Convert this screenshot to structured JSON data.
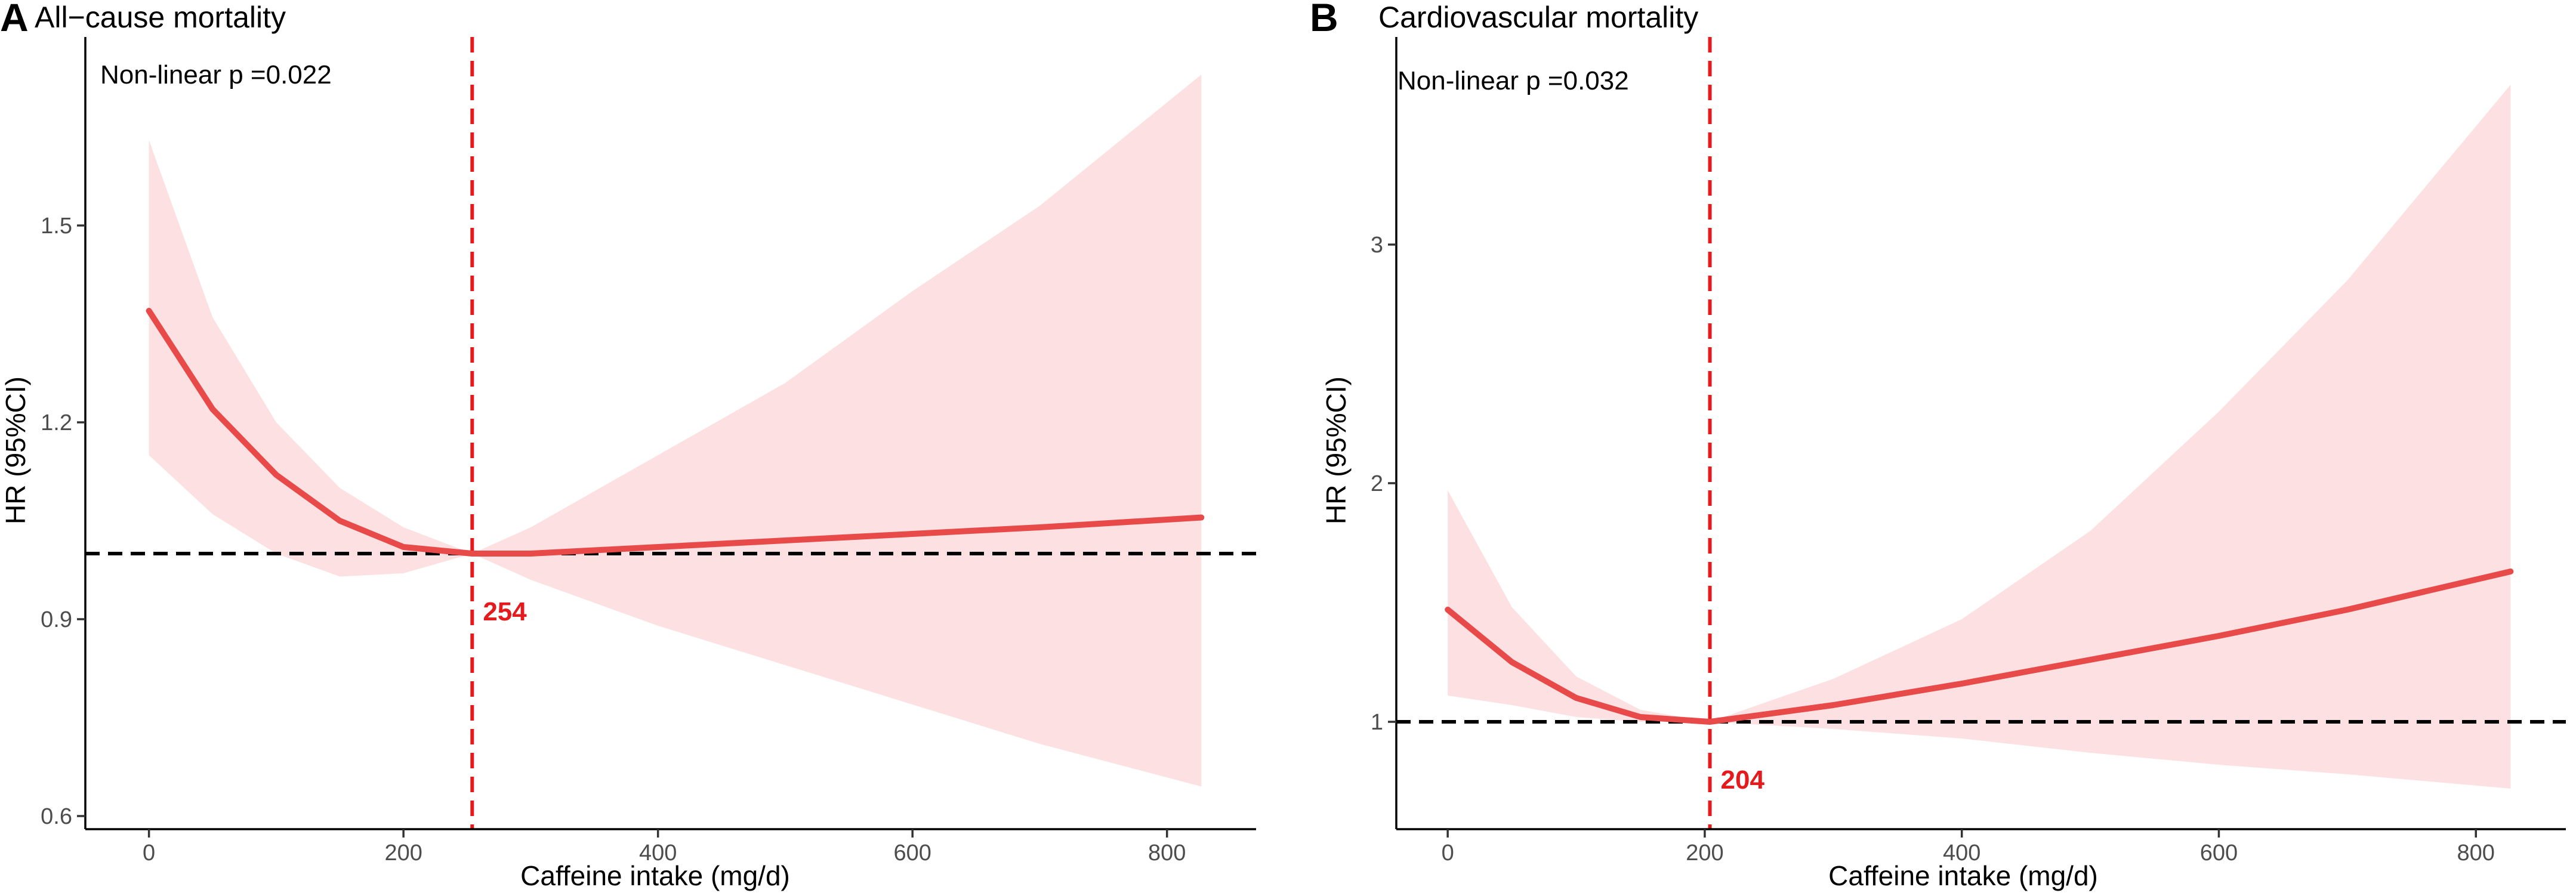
{
  "chart_data": [
    {
      "panel_label": "A",
      "type": "line",
      "title": "All−cause mortality",
      "xlabel": "Caffeine intake (mg/d)",
      "ylabel": "HR (95%CI)",
      "annotation": "Non-linear p =0.022",
      "xlim": [
        -50,
        870
      ],
      "ylim": [
        0.58,
        1.78
      ],
      "x_ticks": [
        {
          "value": 0,
          "label": "0"
        },
        {
          "value": 200,
          "label": "200"
        },
        {
          "value": 400,
          "label": "400"
        },
        {
          "value": 600,
          "label": "600"
        },
        {
          "value": 800,
          "label": "800"
        }
      ],
      "y_ticks": [
        {
          "value": 0.6,
          "label": "0.6"
        },
        {
          "value": 0.9,
          "label": "0.9"
        },
        {
          "value": 1.2,
          "label": "1.2"
        },
        {
          "value": 1.5,
          "label": "1.5"
        }
      ],
      "reference_hr": 1.0,
      "reference_x": 254,
      "reference_x_label": "254",
      "series": {
        "name": "HR",
        "x": [
          0,
          50,
          100,
          150,
          200,
          254,
          300,
          400,
          500,
          600,
          700,
          827
        ],
        "hr": [
          1.37,
          1.22,
          1.12,
          1.05,
          1.01,
          1.0,
          1.0,
          1.01,
          1.02,
          1.03,
          1.04,
          1.055
        ],
        "lower": [
          1.15,
          1.06,
          1.0,
          0.965,
          0.97,
          1.0,
          0.96,
          0.89,
          0.83,
          0.77,
          0.71,
          0.645
        ],
        "upper": [
          1.63,
          1.36,
          1.2,
          1.1,
          1.04,
          1.0,
          1.04,
          1.15,
          1.26,
          1.4,
          1.53,
          1.73
        ]
      },
      "colors": {
        "line": "#e84a4a",
        "band": "#fde0e1",
        "reference_vertical": "#e41a1c",
        "reference_horizontal": "#000000"
      }
    },
    {
      "panel_label": "B",
      "type": "line",
      "title": "Cardiovascular mortality",
      "xlabel": "Caffeine intake (mg/d)",
      "ylabel": "HR (95%CI)",
      "annotation": "Non-linear p =0.032",
      "xlim": [
        -40,
        870
      ],
      "ylim": [
        0.55,
        3.85
      ],
      "x_ticks": [
        {
          "value": 0,
          "label": "0"
        },
        {
          "value": 200,
          "label": "200"
        },
        {
          "value": 400,
          "label": "400"
        },
        {
          "value": 600,
          "label": "600"
        },
        {
          "value": 800,
          "label": "800"
        }
      ],
      "y_ticks": [
        {
          "value": 1,
          "label": "1"
        },
        {
          "value": 2,
          "label": "2"
        },
        {
          "value": 3,
          "label": "3"
        }
      ],
      "reference_hr": 1.0,
      "reference_x": 204,
      "reference_x_label": "204",
      "series": {
        "name": "HR",
        "x": [
          0,
          50,
          100,
          150,
          204,
          300,
          400,
          500,
          600,
          700,
          827
        ],
        "hr": [
          1.47,
          1.25,
          1.1,
          1.02,
          1.0,
          1.07,
          1.16,
          1.26,
          1.36,
          1.47,
          1.63
        ],
        "lower": [
          1.11,
          1.07,
          1.02,
          1.0,
          1.0,
          0.97,
          0.93,
          0.87,
          0.82,
          0.78,
          0.72
        ],
        "upper": [
          1.97,
          1.48,
          1.19,
          1.05,
          1.0,
          1.18,
          1.43,
          1.8,
          2.3,
          2.85,
          3.67
        ]
      },
      "colors": {
        "line": "#e84a4a",
        "band": "#fde0e1",
        "reference_vertical": "#e41a1c",
        "reference_horizontal": "#000000"
      }
    }
  ]
}
